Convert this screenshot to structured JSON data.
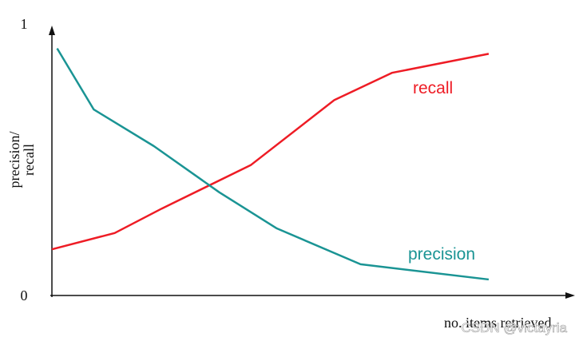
{
  "chart_data": {
    "type": "line",
    "ylabel": [
      "precision/",
      "recall"
    ],
    "xlabel": "no. items retrieved",
    "watermark": "CSDN @victayria",
    "xlim": [
      0,
      1
    ],
    "ylim": [
      0,
      1
    ],
    "yticks": [
      0,
      1
    ],
    "grid": false,
    "series": [
      {
        "name": "recall",
        "color": "#ee1c25",
        "x": [
          0,
          0.12,
          0.21,
          0.38,
          0.54,
          0.65,
          0.835
        ],
        "values": [
          0.17,
          0.23,
          0.32,
          0.48,
          0.72,
          0.82,
          0.89
        ]
      },
      {
        "name": "precision",
        "color": "#1a9494",
        "x": [
          0.01,
          0.08,
          0.195,
          0.32,
          0.43,
          0.59,
          0.835
        ],
        "values": [
          0.91,
          0.685,
          0.55,
          0.38,
          0.247,
          0.115,
          0.059
        ]
      }
    ]
  }
}
